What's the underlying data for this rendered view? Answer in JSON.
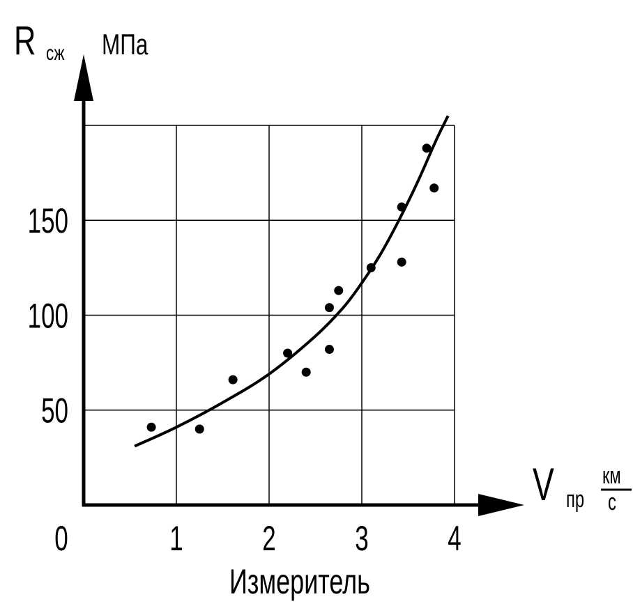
{
  "chart_data": {
    "type": "scatter",
    "title": "",
    "xlabel": "Измеритель",
    "ylabel": "",
    "y_axis_symbol": "R",
    "y_axis_subscript": "сж",
    "y_axis_unit": "МПа",
    "x_axis_symbol": "V",
    "x_axis_subscript": "пр",
    "x_axis_unit_numerator": "км",
    "x_axis_unit_denominator": "с",
    "origin_label": "0",
    "xlim": [
      0,
      4
    ],
    "ylim": [
      0,
      200
    ],
    "x_ticks": [
      1,
      2,
      3,
      4
    ],
    "x_tick_labels": [
      "1",
      "2",
      "3",
      "4"
    ],
    "y_ticks": [
      50,
      100,
      150
    ],
    "y_tick_labels": [
      "50",
      "100",
      "150"
    ],
    "grid": true,
    "series": [
      {
        "kind": "points",
        "x": [
          0.73,
          1.25,
          1.61,
          2.2,
          2.4,
          2.65,
          2.65,
          2.75,
          3.1,
          3.43,
          3.43,
          3.7,
          3.78
        ],
        "y": [
          41,
          40,
          66,
          80,
          70,
          82,
          104,
          113,
          125,
          128,
          157,
          188,
          167
        ]
      },
      {
        "kind": "trend_curve",
        "x": [
          0.55,
          1.0,
          1.5,
          2.0,
          2.5,
          2.8,
          3.0,
          3.2,
          3.4,
          3.6,
          3.8,
          3.93
        ],
        "y": [
          31,
          41,
          54,
          69,
          89,
          104,
          117,
          132,
          150,
          170,
          192,
          205
        ]
      }
    ],
    "colors": {
      "ink": "#000000",
      "background": "#ffffff",
      "grid": "#000000"
    }
  }
}
